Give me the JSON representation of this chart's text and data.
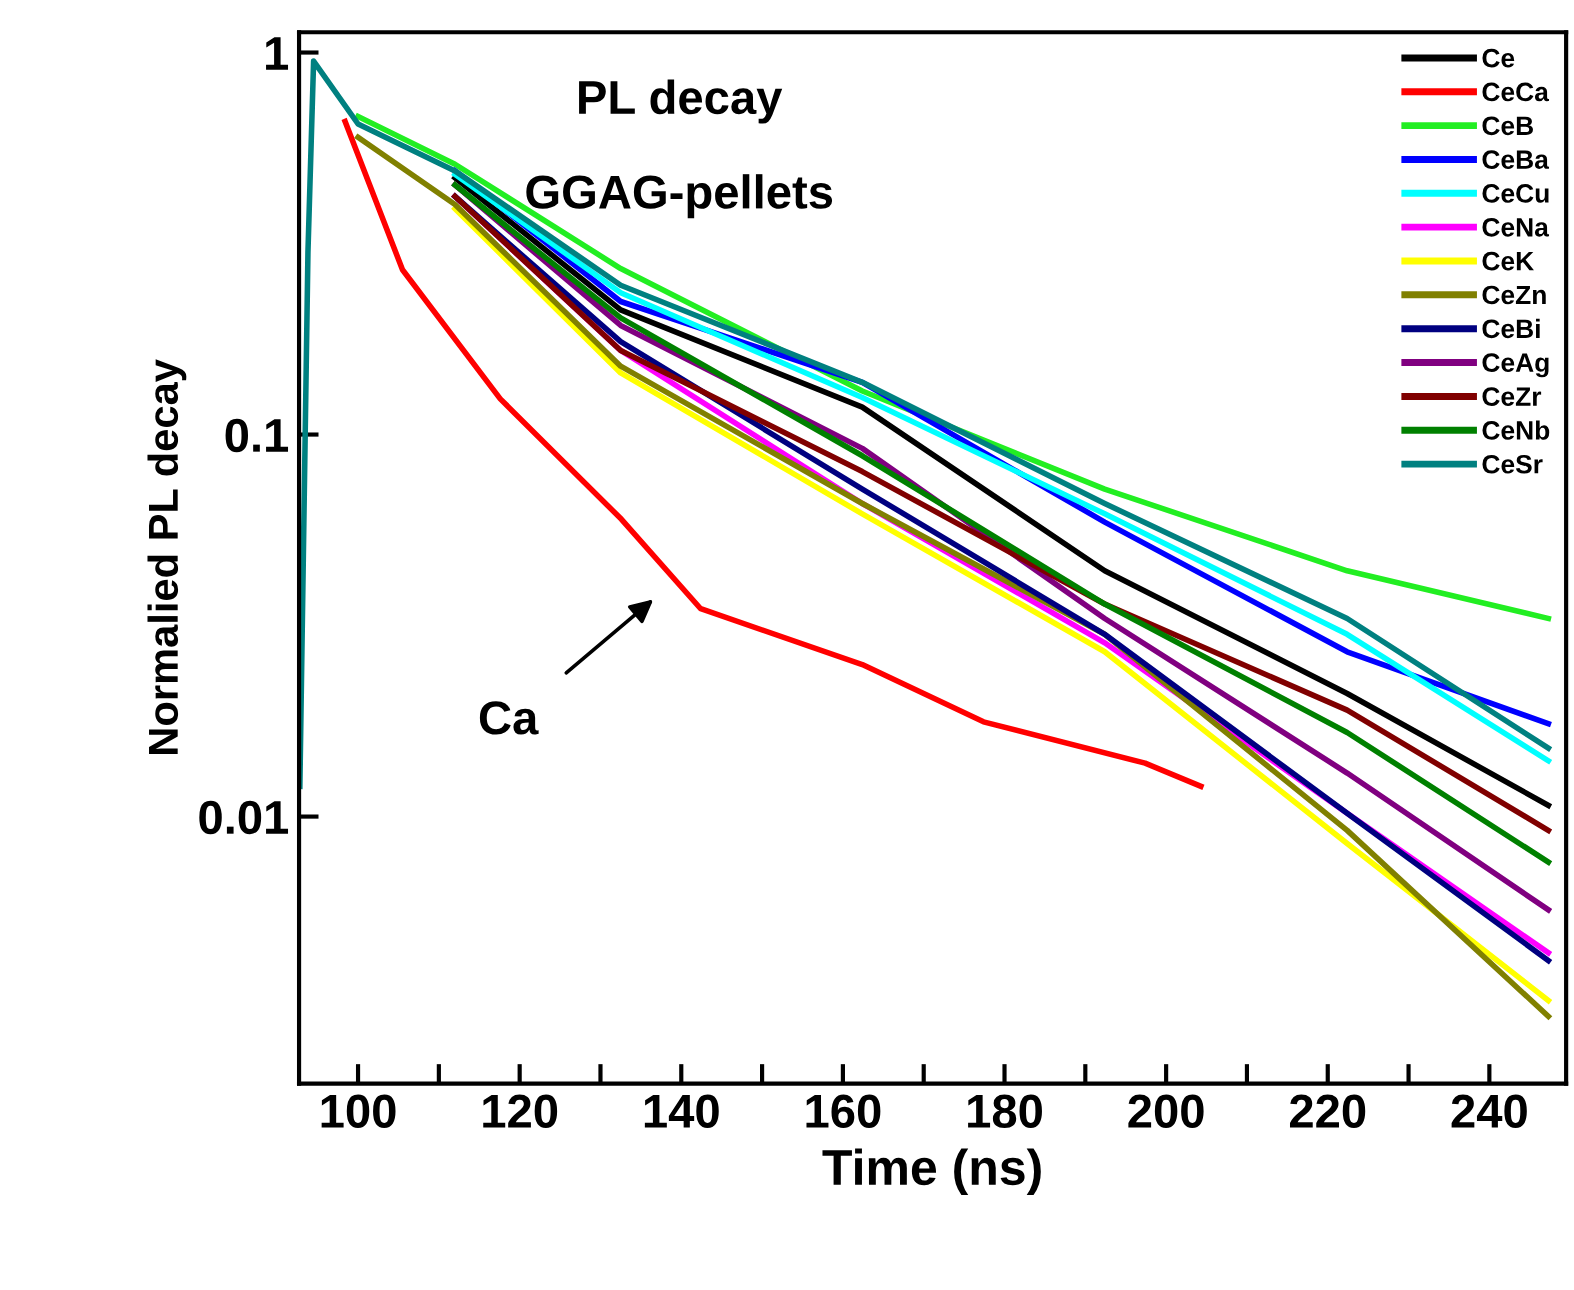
{
  "chart_data": {
    "type": "line",
    "title": "PL decay",
    "subtitle": "GGAG-pellets",
    "xlabel": "Time (ns)",
    "ylabel": "Normalied PL decay",
    "x": [
      92.8,
      93.8,
      94.5,
      100,
      112,
      132.5,
      162.4,
      192.4,
      222.4,
      247.3
    ],
    "series": [
      {
        "name": "Ce",
        "color": "#000000",
        "values": [
          null,
          null,
          null,
          null,
          0.47,
          0.212,
          0.118,
          0.044,
          0.021,
          0.0107
        ]
      },
      {
        "name": "CeCa",
        "color": "#ff0000",
        "x": [
          98.4,
          105.5,
          117.6,
          132.6,
          142.4,
          162.4,
          177.4,
          197.4,
          204.3
        ],
        "values": [
          0.66,
          0.27,
          0.124,
          0.06,
          0.035,
          0.025,
          0.0177,
          0.0138,
          0.012
        ]
      },
      {
        "name": "CeB",
        "color": "#22ee22",
        "values": [
          null,
          null,
          null,
          0.68,
          0.51,
          0.272,
          0.13,
          0.072,
          0.044,
          0.033
        ]
      },
      {
        "name": "CeBa",
        "color": "#0000ff",
        "values": [
          null,
          null,
          null,
          null,
          0.49,
          0.223,
          0.137,
          0.059,
          0.027,
          0.0175
        ]
      },
      {
        "name": "CeCu",
        "color": "#00ffff",
        "values": [
          null,
          null,
          null,
          null,
          0.48,
          0.235,
          0.125,
          0.062,
          0.03,
          0.014
        ]
      },
      {
        "name": "CeNa",
        "color": "#ff00ff",
        "values": [
          null,
          null,
          null,
          null,
          0.42,
          0.166,
          0.066,
          0.0285,
          0.0102,
          0.0044
        ]
      },
      {
        "name": "CeK",
        "color": "#ffff00",
        "values": [
          null,
          null,
          null,
          null,
          0.39,
          0.145,
          0.062,
          0.027,
          0.0085,
          0.0033
        ]
      },
      {
        "name": "CeZn",
        "color": "#808000",
        "values": [
          null,
          null,
          null,
          0.6,
          0.4,
          0.151,
          0.066,
          0.03,
          0.0092,
          0.003
        ]
      },
      {
        "name": "CeBi",
        "color": "#000080",
        "values": [
          null,
          null,
          null,
          null,
          0.42,
          0.175,
          0.072,
          0.03,
          0.0102,
          0.0042
        ]
      },
      {
        "name": "CeAg",
        "color": "#800080",
        "values": [
          null,
          null,
          null,
          null,
          0.45,
          0.193,
          0.092,
          0.033,
          0.013,
          0.0057
        ]
      },
      {
        "name": "CeZr",
        "color": "#800000",
        "values": [
          null,
          null,
          null,
          null,
          0.42,
          0.166,
          0.08,
          0.036,
          0.019,
          0.0092
        ]
      },
      {
        "name": "CeNb",
        "color": "#008000",
        "values": [
          null,
          null,
          null,
          null,
          0.45,
          0.202,
          0.088,
          0.036,
          0.0166,
          0.0076
        ]
      },
      {
        "name": "CeSr",
        "color": "#008080",
        "values": [
          0.012,
          0.3,
          0.95,
          0.65,
          0.49,
          0.246,
          0.137,
          0.066,
          0.033,
          0.0151
        ]
      }
    ],
    "xlim": [
      92.7,
      249.5
    ],
    "ylim": [
      0.002,
      1.13
    ],
    "log": "y",
    "xticks": [
      100,
      {
        "value": 110,
        "label": null
      },
      120,
      {
        "value": 130,
        "label": null
      },
      140,
      {
        "value": 150,
        "label": null
      },
      160,
      {
        "value": 170,
        "label": null
      },
      180,
      {
        "value": 190,
        "label": null
      },
      200,
      {
        "value": 210,
        "label": null
      },
      220,
      {
        "value": 230,
        "label": null
      },
      240
    ],
    "yticks": [
      0.01,
      0.1,
      1
    ],
    "annotations": [
      "Ca"
    ],
    "legend": "top right",
    "grid": false,
    "line_style": "solid",
    "marker": "none"
  }
}
